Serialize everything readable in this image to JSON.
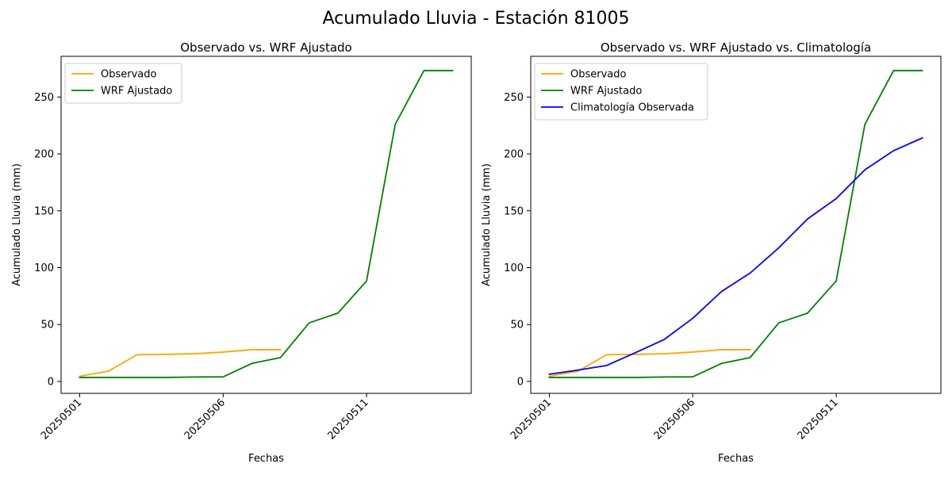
{
  "figure": {
    "suptitle": "Acumulado Lluvia - Estación 81005"
  },
  "chart_data": [
    {
      "type": "line",
      "title": "Observado vs. WRF Ajustado",
      "xlabel": "Fechas",
      "ylabel": "Acumulado Lluvia (mm)",
      "x": [
        "20250501",
        "20250502",
        "20250503",
        "20250504",
        "20250505",
        "20250506",
        "20250507",
        "20250508",
        "20250509",
        "20250510",
        "20250511",
        "20250512",
        "20250513",
        "20250514"
      ],
      "xticks": [
        "20250501",
        "20250506",
        "20250511"
      ],
      "xlim": [
        -0.65,
        13.65
      ],
      "ylim": [
        -10.5,
        285.8
      ],
      "yticks": [
        0,
        50,
        100,
        150,
        200,
        250
      ],
      "grid": false,
      "legend": "upper-left",
      "series": [
        {
          "name": "Observado",
          "color": "#ffa500",
          "values": [
            4.5,
            9.0,
            23.5,
            23.8,
            24.3,
            25.8,
            27.9,
            27.9,
            null,
            null,
            null,
            null,
            null,
            null
          ]
        },
        {
          "name": "WRF Ajustado",
          "color": "#008000",
          "values": [
            3.5,
            3.5,
            3.5,
            3.5,
            3.9,
            4.0,
            15.8,
            21.0,
            51.5,
            60.0,
            88.3,
            226.0,
            273.2,
            273.2
          ]
        }
      ]
    },
    {
      "type": "line",
      "title": "Observado vs. WRF Ajustado vs. Climatología",
      "xlabel": "Fechas",
      "ylabel": "Acumulado Lluvia (mm)",
      "x": [
        "20250501",
        "20250502",
        "20250503",
        "20250504",
        "20250505",
        "20250506",
        "20250507",
        "20250508",
        "20250509",
        "20250510",
        "20250511",
        "20250512",
        "20250513",
        "20250514"
      ],
      "xticks": [
        "20250501",
        "20250506",
        "20250511"
      ],
      "xlim": [
        -0.65,
        13.65
      ],
      "ylim": [
        -10.5,
        285.8
      ],
      "yticks": [
        0,
        50,
        100,
        150,
        200,
        250
      ],
      "grid": false,
      "legend": "upper-left",
      "series": [
        {
          "name": "Observado",
          "color": "#ffa500",
          "values": [
            4.5,
            9.0,
            23.5,
            23.8,
            24.3,
            25.8,
            27.9,
            27.9,
            null,
            null,
            null,
            null,
            null,
            null
          ]
        },
        {
          "name": "WRF Ajustado",
          "color": "#008000",
          "values": [
            3.5,
            3.5,
            3.5,
            3.5,
            3.9,
            4.0,
            15.8,
            21.0,
            51.5,
            60.0,
            88.3,
            226.0,
            273.2,
            273.2
          ]
        },
        {
          "name": "Climatología Observada",
          "color": "#0000ff",
          "values": [
            6.3,
            10.0,
            14.0,
            25.3,
            36.8,
            55.5,
            79.0,
            95.3,
            117.5,
            142.8,
            160.7,
            186.0,
            202.8,
            214.0
          ]
        }
      ]
    }
  ]
}
